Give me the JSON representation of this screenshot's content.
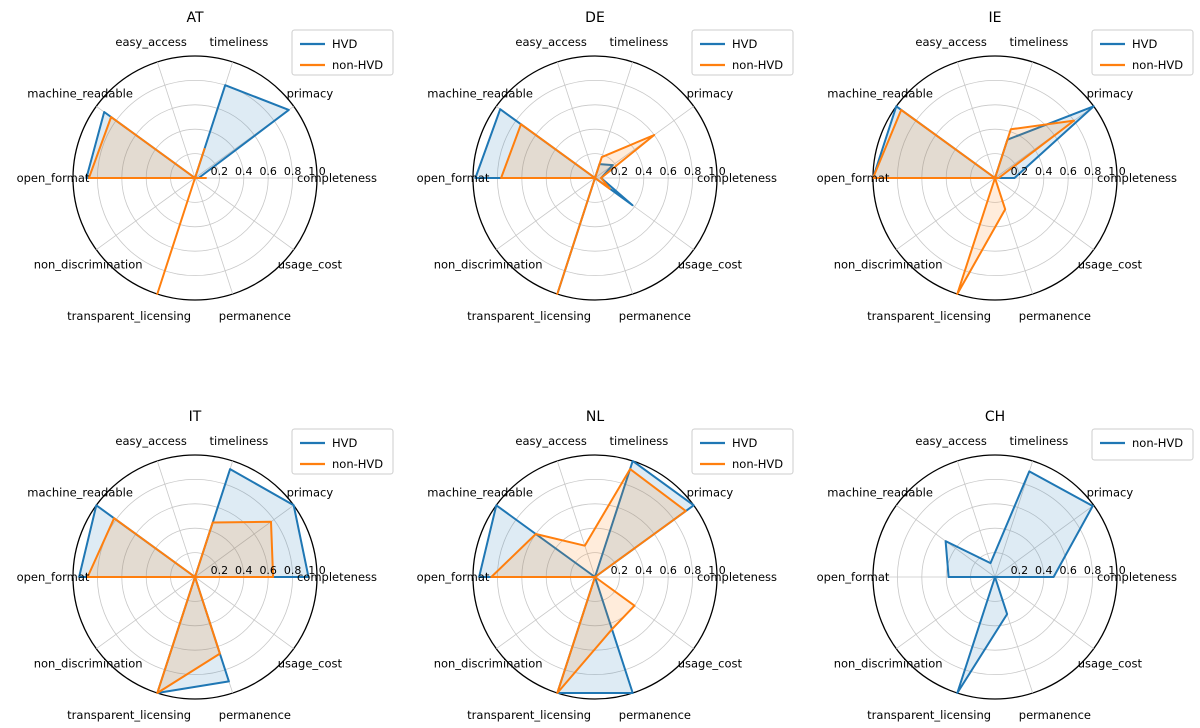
{
  "figure": {
    "background": "#ffffff"
  },
  "chart_data": {
    "type": "radar",
    "grid": true,
    "rlim": [
      0,
      1
    ],
    "rticks": [
      0.2,
      0.4,
      0.6,
      0.8,
      1.0
    ],
    "rtick_labels": [
      "0.2",
      "0.4",
      "0.6",
      "0.8",
      "1.0"
    ],
    "legend_position": "upper right",
    "colors": {
      "HVD": "#1f77b4",
      "non-HVD": "#ff7f0e",
      "CH-non-HVD": "#1f77b4"
    },
    "axes": [
      "timeliness",
      "primacy",
      "completeness",
      "usage_cost",
      "permanence",
      "transparent_licensing",
      "non_discrimination",
      "open_format",
      "machine_readable",
      "easy_access"
    ],
    "angles_deg": [
      72,
      36,
      0,
      324,
      288,
      252,
      216,
      180,
      144,
      108
    ],
    "charts": [
      {
        "title": "AT",
        "series": [
          {
            "name": "HVD",
            "color": "#1f77b4",
            "values": [
              0.8,
              0.95,
              0.03,
              0,
              0,
              0,
              0,
              0.89,
              0.92,
              0
            ]
          },
          {
            "name": "non-HVD",
            "color": "#ff7f0e",
            "values": [
              0.25,
              0,
              0.09,
              0,
              0,
              1.0,
              0,
              0.87,
              0.85,
              0
            ]
          }
        ]
      },
      {
        "title": "DE",
        "series": [
          {
            "name": "HVD",
            "color": "#1f77b4",
            "values": [
              0.12,
              0.18,
              0.05,
              0.38,
              0,
              0.98,
              0,
              0.98,
              0.96,
              0
            ]
          },
          {
            "name": "non-HVD",
            "color": "#ff7f0e",
            "values": [
              0.18,
              0.6,
              0.05,
              0.15,
              0,
              1.0,
              0,
              0.77,
              0.75,
              0
            ]
          }
        ]
      },
      {
        "title": "IE",
        "series": [
          {
            "name": "HVD",
            "color": "#1f77b4",
            "values": [
              0.33,
              1.0,
              0.16,
              0,
              0,
              0,
              0,
              1.0,
              1.0,
              0
            ]
          },
          {
            "name": "non-HVD",
            "color": "#ff7f0e",
            "values": [
              0.42,
              0.8,
              0.03,
              0,
              0.27,
              1.0,
              0,
              1.0,
              0.95,
              0
            ]
          }
        ]
      },
      {
        "title": "IT",
        "series": [
          {
            "name": "HVD",
            "color": "#1f77b4",
            "values": [
              0.93,
              1.0,
              0.93,
              0,
              0.9,
              1.0,
              0,
              0.95,
              1.0,
              0
            ]
          },
          {
            "name": "non-HVD",
            "color": "#ff7f0e",
            "values": [
              0.47,
              0.77,
              0.64,
              0,
              0.66,
              1.0,
              0,
              0.88,
              0.82,
              0
            ]
          }
        ]
      },
      {
        "title": "NL",
        "series": [
          {
            "name": "HVD",
            "color": "#1f77b4",
            "values": [
              1.0,
              1.0,
              0,
              0,
              1.0,
              1.0,
              0,
              0.95,
              1.0,
              0
            ]
          },
          {
            "name": "non-HVD",
            "color": "#ff7f0e",
            "values": [
              0.93,
              0.92,
              0,
              0.4,
              0.45,
              1.0,
              0,
              0.85,
              0.6,
              0.27
            ]
          }
        ]
      },
      {
        "title": "CH",
        "series": [
          {
            "name": "non-HVD",
            "color": "#1f77b4",
            "values": [
              0.91,
              0.99,
              0.48,
              0,
              0.32,
              1.0,
              0,
              0.38,
              0.5,
              0.12
            ]
          }
        ]
      }
    ]
  }
}
